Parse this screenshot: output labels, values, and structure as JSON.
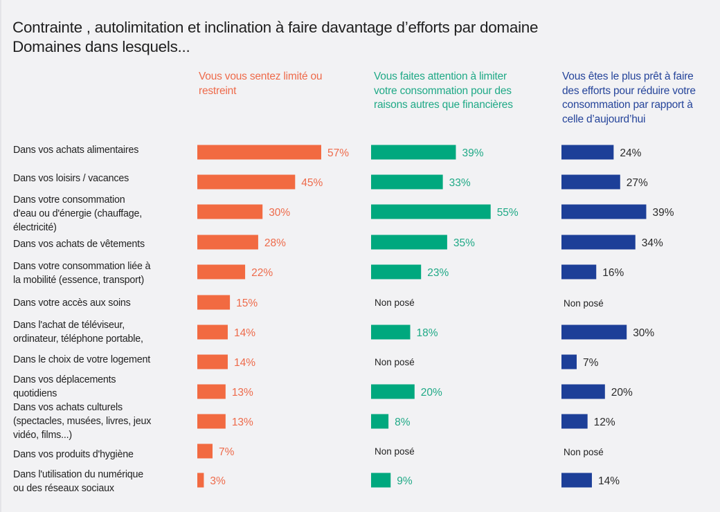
{
  "chart_data": {
    "type": "bar",
    "orientation": "horizontal",
    "title": "Contrainte , autolimitation et inclination à faire davantage d’efforts par domaine",
    "subtitle": "Domaines dans lesquels...",
    "unit": "%",
    "xlim": [
      0,
      100
    ],
    "grid": false,
    "legend": "none",
    "not_asked_label": "Non posé",
    "categories": [
      [
        "Dans vos achats alimentaires"
      ],
      [
        "Dans vos loisirs / vacances"
      ],
      [
        "Dans votre consommation",
        "d'eau ou d'énergie (chauffage,",
        "électricité)"
      ],
      [
        "Dans vos achats de vêtements"
      ],
      [
        "Dans votre consommation liée à",
        "la mobilité (essence, transport)"
      ],
      [
        "Dans votre accès aux soins"
      ],
      [
        "Dans l'achat de téléviseur,",
        "ordinateur, téléphone portable,"
      ],
      [
        "Dans le choix de votre logement"
      ],
      [
        "Dans vos déplacements",
        "quotidiens"
      ],
      [
        "Dans vos achats culturels",
        "(spectacles, musées, livres, jeux",
        "vidéo, films...)"
      ],
      [
        "Dans vos produits d'hygiène"
      ],
      [
        "Dans l'utilisation du numérique",
        "ou des réseaux sociaux"
      ]
    ],
    "series": [
      {
        "name": "Vous vous sentez limité ou restreint",
        "header_lines": [
          "Vous vous sentez limité ou",
          "restreint"
        ],
        "color": "#f26a41",
        "label_color": "#ee6a4a",
        "values": [
          57,
          45,
          30,
          28,
          22,
          15,
          14,
          14,
          13,
          13,
          7,
          3
        ]
      },
      {
        "name": "Vous faites attention à limiter votre consommation pour des raisons autres que financières",
        "header_lines": [
          "Vous faites attention à limiter",
          "votre consommation pour des",
          "raisons autres que financières"
        ],
        "color": "#00a87e",
        "label_color": "#1fa986",
        "values": [
          39,
          33,
          55,
          35,
          23,
          null,
          18,
          null,
          20,
          8,
          null,
          9
        ]
      },
      {
        "name": "Vous êtes le plus prêt à faire des efforts pour réduire votre consommation par rapport à celle d’aujourd’hui",
        "header_lines": [
          "Vous êtes le plus prêt à faire",
          "des efforts pour réduire votre",
          "consommation par rapport à",
          "celle d’aujourd’hui"
        ],
        "color": "#1d3f98",
        "label_color": "#2a2a2a",
        "header_color": "#25449a",
        "values": [
          24,
          27,
          39,
          34,
          16,
          null,
          30,
          7,
          20,
          12,
          null,
          14
        ]
      }
    ]
  }
}
